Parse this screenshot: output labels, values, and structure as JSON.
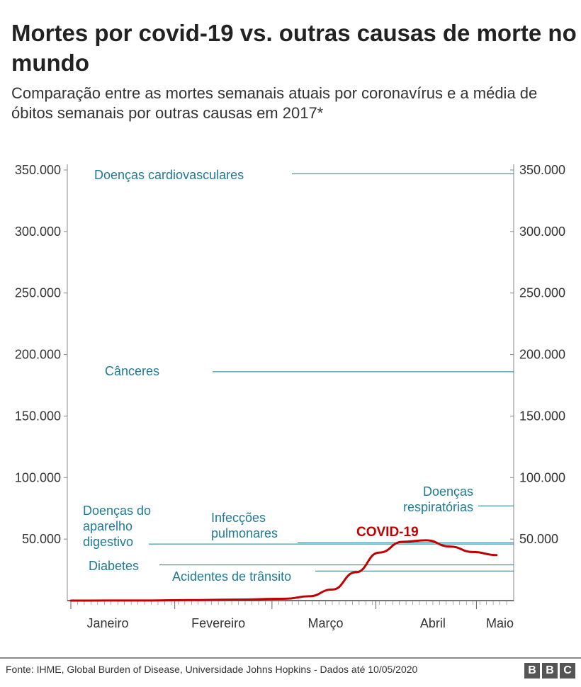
{
  "header": {
    "title": "Mortes por covid-19 vs. outras causas de morte no mundo",
    "subtitle": "Comparação entre as mortes semanais atuais por coronavírus e a média de óbitos semanais por outras causas em 2017*"
  },
  "footer": {
    "source": "Fonte: IHME, Global Burden of Disease, Universidade Johns Hopkins - Dados até 10/05/2020",
    "logo": "BBC"
  },
  "chart_data": {
    "type": "line",
    "xlim": [
      "2020-01-01",
      "2020-05-10"
    ],
    "ylim": [
      0,
      350000
    ],
    "yticks": [
      {
        "v": 50000,
        "label": "50.000"
      },
      {
        "v": 100000,
        "label": "100.000"
      },
      {
        "v": 150000,
        "label": "150.000"
      },
      {
        "v": 200000,
        "label": "200.000"
      },
      {
        "v": 250000,
        "label": "250.000"
      },
      {
        "v": 300000,
        "label": "300.000"
      },
      {
        "v": 350000,
        "label": "350.000"
      }
    ],
    "xticks": [
      {
        "date": "2020-01-12",
        "label": "Janeiro"
      },
      {
        "date": "2020-02-14",
        "label": "Fevereiro"
      },
      {
        "date": "2020-03-17",
        "label": "Março"
      },
      {
        "date": "2020-04-18",
        "label": "Abril"
      },
      {
        "date": "2020-05-08",
        "label": "Maio"
      }
    ],
    "grid": false,
    "covid": {
      "name": "COVID-19",
      "color": "#c00000",
      "points": [
        [
          "2020-01-01",
          0
        ],
        [
          "2020-01-22",
          100
        ],
        [
          "2020-02-05",
          400
        ],
        [
          "2020-02-19",
          800
        ],
        [
          "2020-03-05",
          1500
        ],
        [
          "2020-03-12",
          3500
        ],
        [
          "2020-03-19",
          9000
        ],
        [
          "2020-03-26",
          23000
        ],
        [
          "2020-04-02",
          39000
        ],
        [
          "2020-04-09",
          47800
        ],
        [
          "2020-04-16",
          49000
        ],
        [
          "2020-04-23",
          44000
        ],
        [
          "2020-04-30",
          39500
        ],
        [
          "2020-05-07",
          37000
        ]
      ]
    },
    "reference_lines": [
      {
        "name": "Doenças cardiovasculares",
        "value": 347000
      },
      {
        "name": "Cânceres",
        "value": 186000
      },
      {
        "name": "Doenças respiratórias",
        "value": 77000
      },
      {
        "name": "Infecções pulmonares",
        "value": 47000
      },
      {
        "name": "Doenças do aparelho digestivo",
        "value": 46000
      },
      {
        "name": "Diabetes",
        "value": 29000
      },
      {
        "name": "Acidentes de trânsito",
        "value": 24000
      }
    ],
    "ref_color": "#1f7a94"
  }
}
